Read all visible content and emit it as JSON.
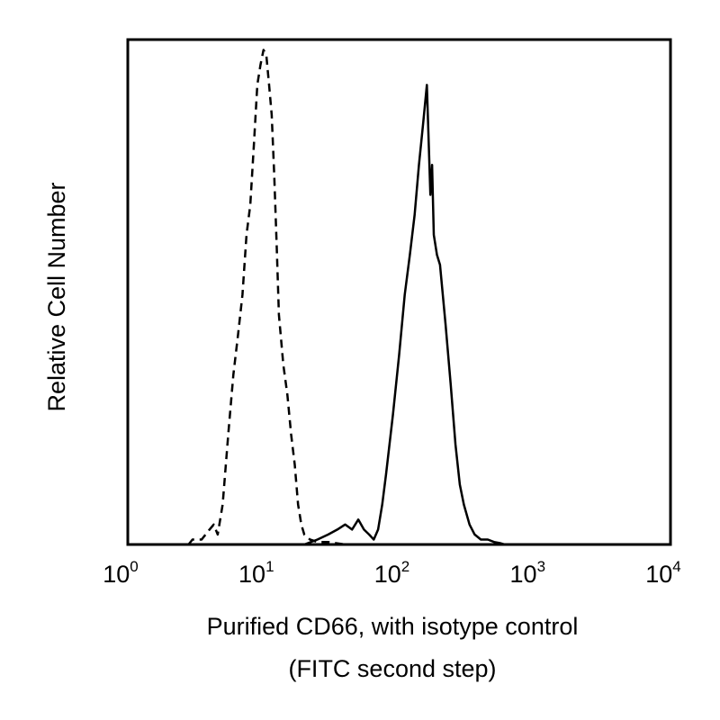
{
  "chart_data": {
    "type": "line",
    "title": "",
    "xlabel_lines": [
      "Purified CD66, with isotype control",
      "(FITC second step)"
    ],
    "ylabel": "Relative Cell Number",
    "x_scale": "log",
    "xlim": [
      1,
      10000
    ],
    "ylim": [
      0,
      100
    ],
    "grid": false,
    "legend": "none",
    "x_ticks": [
      {
        "base": "10",
        "exp": "0",
        "value": 1
      },
      {
        "base": "10",
        "exp": "1",
        "value": 10
      },
      {
        "base": "10",
        "exp": "2",
        "value": 100
      },
      {
        "base": "10",
        "exp": "3",
        "value": 1000
      },
      {
        "base": "10",
        "exp": "4",
        "value": 10000
      }
    ],
    "series": [
      {
        "style": "dashed",
        "color": "#000000",
        "x": [
          2.8,
          3.0,
          3.5,
          4.0,
          4.3,
          4.6,
          5.0,
          5.5,
          6.0,
          6.5,
          7.0,
          7.5,
          8.0,
          8.5,
          9.0,
          9.5,
          10.0,
          10.5,
          11.0,
          11.5,
          12.0,
          12.5,
          13.0,
          14.0,
          15.0,
          16.0,
          17.0,
          18.0,
          19.0,
          20.0,
          22.0,
          25.0,
          30.0,
          40.0,
          60.0,
          100.0,
          200.0,
          500.0
        ],
        "y": [
          0,
          1,
          1,
          3,
          4,
          2,
          8,
          22,
          34,
          42,
          50,
          62,
          68,
          80,
          92,
          96,
          99,
          98,
          92,
          86,
          74,
          60,
          46,
          36,
          30,
          22,
          16,
          8,
          4,
          2,
          1,
          0.5,
          0.5,
          0,
          0,
          0,
          0,
          0
        ]
      },
      {
        "style": "solid",
        "color": "#000000",
        "x": [
          20,
          25,
          30,
          35,
          40,
          45,
          50,
          55,
          60,
          65,
          70,
          75,
          80,
          90,
          100,
          110,
          120,
          130,
          140,
          150,
          160,
          170,
          175,
          180,
          190,
          200,
          220,
          240,
          260,
          280,
          300,
          330,
          360,
          400,
          450,
          500,
          550,
          600
        ],
        "y": [
          0,
          1,
          2,
          3,
          4,
          3,
          5,
          3,
          2,
          1,
          3,
          8,
          14,
          26,
          38,
          50,
          58,
          66,
          76,
          84,
          92,
          70,
          76,
          62,
          58,
          56,
          44,
          32,
          20,
          12,
          8,
          4,
          2,
          1,
          1,
          0.5,
          0.3,
          0
        ]
      }
    ]
  }
}
